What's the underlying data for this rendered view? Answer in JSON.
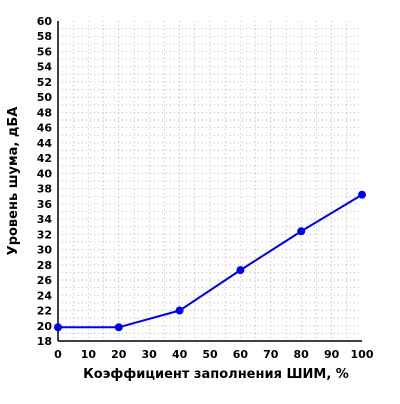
{
  "chart_data": {
    "type": "line",
    "title": "",
    "xlabel": "Коэффициент заполнения ШИМ, %",
    "ylabel": "Уровень шума, дБА",
    "xlim": [
      0,
      100
    ],
    "ylim": [
      18,
      60
    ],
    "x_ticks": [
      0,
      10,
      20,
      30,
      40,
      50,
      60,
      70,
      80,
      90,
      100
    ],
    "y_ticks": [
      18,
      20,
      22,
      24,
      26,
      28,
      30,
      32,
      34,
      36,
      38,
      40,
      42,
      44,
      46,
      48,
      50,
      52,
      54,
      56,
      58,
      60
    ],
    "x_minor_step": 5,
    "y_minor_step": 1,
    "grid": true,
    "grid_style": "dotted",
    "legend": "none",
    "series": [
      {
        "x": [
          0,
          20,
          40,
          60,
          80,
          100
        ],
        "values": [
          19.8,
          19.8,
          22.0,
          27.3,
          32.4,
          37.2
        ],
        "color": "#0000ee",
        "marker": "circle"
      }
    ]
  }
}
